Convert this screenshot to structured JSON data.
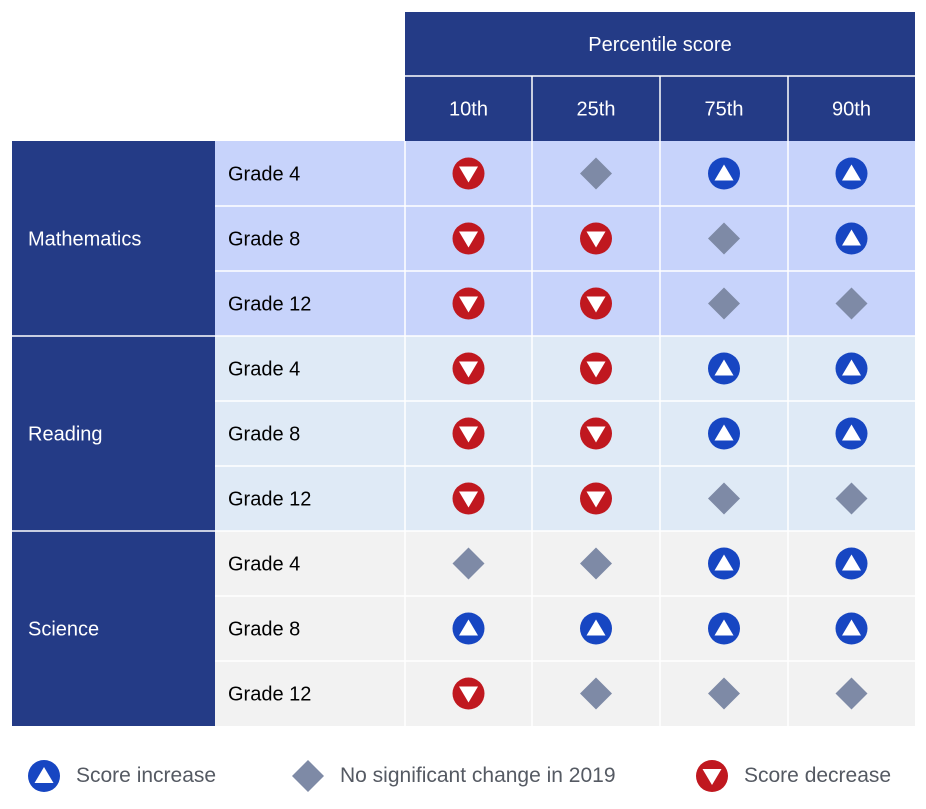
{
  "chart_data": {
    "type": "table",
    "header": "Percentile score",
    "percentiles": [
      "10th",
      "25th",
      "75th",
      "90th"
    ],
    "rows": [
      {
        "subject": "Mathematics",
        "grade": "Grade 4",
        "values": [
          "decrease",
          "no-change",
          "increase",
          "increase"
        ]
      },
      {
        "subject": "Mathematics",
        "grade": "Grade 8",
        "values": [
          "decrease",
          "decrease",
          "no-change",
          "increase"
        ]
      },
      {
        "subject": "Mathematics",
        "grade": "Grade 12",
        "values": [
          "decrease",
          "decrease",
          "no-change",
          "no-change"
        ]
      },
      {
        "subject": "Reading",
        "grade": "Grade 4",
        "values": [
          "decrease",
          "decrease",
          "increase",
          "increase"
        ]
      },
      {
        "subject": "Reading",
        "grade": "Grade 8",
        "values": [
          "decrease",
          "decrease",
          "increase",
          "increase"
        ]
      },
      {
        "subject": "Reading",
        "grade": "Grade 12",
        "values": [
          "decrease",
          "decrease",
          "no-change",
          "no-change"
        ]
      },
      {
        "subject": "Science",
        "grade": "Grade 4",
        "values": [
          "no-change",
          "no-change",
          "increase",
          "increase"
        ]
      },
      {
        "subject": "Science",
        "grade": "Grade 8",
        "values": [
          "increase",
          "increase",
          "increase",
          "increase"
        ]
      },
      {
        "subject": "Science",
        "grade": "Grade 12",
        "values": [
          "decrease",
          "no-change",
          "no-change",
          "no-change"
        ]
      }
    ],
    "subjects": [
      "Mathematics",
      "Reading",
      "Science"
    ],
    "legend": [
      {
        "key": "increase",
        "label": "Score increase"
      },
      {
        "key": "no-change",
        "label": "No significant change in 2019"
      },
      {
        "key": "decrease",
        "label": "Score decrease"
      }
    ]
  },
  "colors": {
    "header_bg": "#243b86",
    "subject_bg": "#243b86",
    "math_bg": "#c7d3fb",
    "reading_bg": "#dfeaf6",
    "science_bg": "#f2f2f2",
    "increase": "#1746c2",
    "decrease": "#c0181f",
    "no_change": "#7e8aa6",
    "grid_line": "#ffffff"
  },
  "icons": {
    "increase": "up-triangle-circle-icon",
    "decrease": "down-triangle-circle-icon",
    "no_change": "diamond-icon"
  }
}
